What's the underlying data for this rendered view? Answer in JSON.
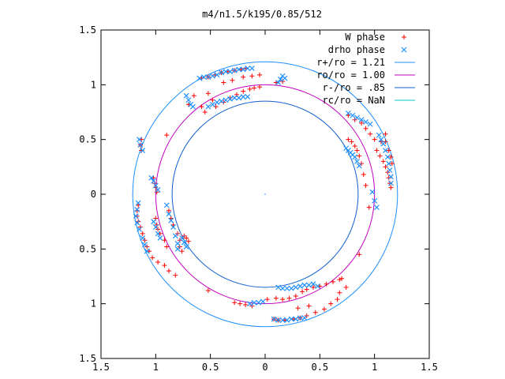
{
  "chart_data": {
    "type": "scatter",
    "title": "m4/n1.5/k195/0.85/512",
    "xlim": [
      -1.5,
      1.5
    ],
    "ylim": [
      -1.5,
      1.5
    ],
    "x_ticks": [
      -1.5,
      -1,
      -0.5,
      0,
      0.5,
      1,
      1.5
    ],
    "y_ticks": [
      -1.5,
      -1,
      -0.5,
      0,
      0.5,
      1,
      1.5
    ],
    "x_tick_labels": [
      "1.5",
      "1",
      "0.5",
      "0",
      "0.5",
      "1",
      "1.5"
    ],
    "y_tick_labels": [
      "1.5",
      "1",
      "0.5",
      "0",
      "0.5",
      "1",
      "1.5"
    ],
    "grid": false,
    "legend_position": "top-right",
    "legend": [
      {
        "label": "W phase",
        "kind": "plus",
        "color": "#ff0000"
      },
      {
        "label": "drho phase",
        "kind": "cross",
        "color": "#1e90ff"
      },
      {
        "label": "r+/ro = 1.21",
        "kind": "line",
        "color": "#1e90ff"
      },
      {
        "label": "ro/ro = 1.00",
        "kind": "line",
        "color": "#c000c0"
      },
      {
        "label": "r-/ro = .85",
        "kind": "line",
        "color": "#1060d0"
      },
      {
        "label": "rc/ro = NaN",
        "kind": "line",
        "color": "#00c8c8"
      }
    ],
    "circles": [
      {
        "name": "r+/ro",
        "r": 1.21,
        "color": "#1e90ff"
      },
      {
        "name": "ro/ro",
        "r": 1.0,
        "color": "#c000c0"
      },
      {
        "name": "r-/ro",
        "r": 0.85,
        "color": "#1060d0"
      }
    ],
    "series": [
      {
        "name": "W phase",
        "color": "#ff0000",
        "points": [
          [
            -0.58,
            1.06
          ],
          [
            -0.52,
            1.07
          ],
          [
            -0.46,
            1.09
          ],
          [
            -0.4,
            1.11
          ],
          [
            -0.34,
            1.12
          ],
          [
            -0.28,
            1.13
          ],
          [
            -0.22,
            1.14
          ],
          [
            -0.18,
            1.15
          ],
          [
            -0.52,
            0.92
          ],
          [
            -0.48,
            0.86
          ],
          [
            -0.45,
            0.8
          ],
          [
            -0.38,
            0.84
          ],
          [
            -0.32,
            0.88
          ],
          [
            -0.26,
            0.91
          ],
          [
            -0.2,
            0.94
          ],
          [
            -0.14,
            0.96
          ],
          [
            -0.1,
            0.97
          ],
          [
            -0.05,
            0.98
          ],
          [
            -0.38,
            1.02
          ],
          [
            -0.3,
            1.04
          ],
          [
            -0.2,
            1.07
          ],
          [
            -0.12,
            1.08
          ],
          [
            -0.05,
            1.09
          ],
          [
            0.1,
            1.02
          ],
          [
            0.16,
            1.03
          ],
          [
            -0.65,
            0.9
          ],
          [
            -0.7,
            0.82
          ],
          [
            -0.55,
            0.75
          ],
          [
            -0.58,
            0.8
          ],
          [
            -0.9,
            0.54
          ],
          [
            -1.13,
            0.5
          ],
          [
            -1.14,
            0.45
          ],
          [
            -1.13,
            0.4
          ],
          [
            -1.02,
            0.15
          ],
          [
            -1.01,
            0.1
          ],
          [
            -1.0,
            0.06
          ],
          [
            -0.99,
            0.02
          ],
          [
            -1.16,
            -0.1
          ],
          [
            -1.17,
            -0.15
          ],
          [
            -1.17,
            -0.2
          ],
          [
            -1.16,
            -0.25
          ],
          [
            -1.14,
            -0.3
          ],
          [
            -1.12,
            -0.36
          ],
          [
            -1.1,
            -0.42
          ],
          [
            -1.08,
            -0.48
          ],
          [
            -1.06,
            -0.52
          ],
          [
            -1.03,
            -0.58
          ],
          [
            -0.98,
            -0.62
          ],
          [
            -0.92,
            -0.65
          ],
          [
            -0.88,
            -0.7
          ],
          [
            -0.82,
            -0.74
          ],
          [
            -1.0,
            -0.22
          ],
          [
            -0.99,
            -0.28
          ],
          [
            -0.98,
            -0.32
          ],
          [
            -0.96,
            -0.36
          ],
          [
            -0.92,
            -0.42
          ],
          [
            -0.9,
            -0.48
          ],
          [
            -0.88,
            -0.15
          ],
          [
            -0.86,
            -0.22
          ],
          [
            -0.84,
            -0.28
          ],
          [
            -0.8,
            -0.36
          ],
          [
            -0.78,
            -0.42
          ],
          [
            -0.78,
            -0.48
          ],
          [
            -0.76,
            -0.52
          ],
          [
            -0.74,
            -0.38
          ],
          [
            -0.72,
            -0.4
          ],
          [
            -0.7,
            -0.43
          ],
          [
            -0.52,
            -0.88
          ],
          [
            -0.28,
            -0.99
          ],
          [
            -0.23,
            -1.0
          ],
          [
            -0.18,
            -1.01
          ],
          [
            -0.12,
            -1.02
          ],
          [
            0.02,
            -0.96
          ],
          [
            0.1,
            -0.95
          ],
          [
            0.16,
            -0.96
          ],
          [
            0.22,
            -0.95
          ],
          [
            0.28,
            -0.93
          ],
          [
            0.34,
            -0.89
          ],
          [
            0.38,
            -0.87
          ],
          [
            0.44,
            -0.85
          ],
          [
            0.5,
            -0.84
          ],
          [
            0.56,
            -0.82
          ],
          [
            0.62,
            -0.8
          ],
          [
            0.68,
            -0.78
          ],
          [
            0.7,
            -0.77
          ],
          [
            0.08,
            -1.14
          ],
          [
            0.12,
            -1.15
          ],
          [
            0.18,
            -1.15
          ],
          [
            0.26,
            -1.14
          ],
          [
            0.32,
            -1.13
          ],
          [
            0.38,
            -1.11
          ],
          [
            0.46,
            -1.08
          ],
          [
            0.54,
            -1.05
          ],
          [
            0.6,
            -1.0
          ],
          [
            0.66,
            -0.96
          ],
          [
            0.68,
            -0.9
          ],
          [
            0.86,
            -0.55
          ],
          [
            0.74,
            -0.85
          ],
          [
            0.4,
            -1.02
          ],
          [
            0.3,
            -1.04
          ],
          [
            0.76,
            0.72
          ],
          [
            0.82,
            0.68
          ],
          [
            0.88,
            0.65
          ],
          [
            0.92,
            0.6
          ],
          [
            0.96,
            0.55
          ],
          [
            1.0,
            0.5
          ],
          [
            1.06,
            0.48
          ],
          [
            1.1,
            0.55
          ],
          [
            0.76,
            0.5
          ],
          [
            0.79,
            0.48
          ],
          [
            0.82,
            0.44
          ],
          [
            0.84,
            0.4
          ],
          [
            0.86,
            0.35
          ],
          [
            0.88,
            0.28
          ],
          [
            0.9,
            0.18
          ],
          [
            0.92,
            0.08
          ],
          [
            0.95,
            -0.12
          ],
          [
            1.02,
            0.4
          ],
          [
            1.05,
            0.35
          ],
          [
            1.08,
            0.3
          ],
          [
            1.1,
            0.25
          ],
          [
            1.12,
            0.2
          ],
          [
            1.13,
            0.15
          ],
          [
            1.14,
            0.1
          ],
          [
            1.15,
            0.06
          ],
          [
            1.1,
            0.48
          ],
          [
            1.13,
            0.4
          ],
          [
            1.15,
            0.34
          ],
          [
            1.16,
            0.28
          ]
        ]
      },
      {
        "name": "drho phase",
        "color": "#1e90ff",
        "points": [
          [
            -0.6,
            1.06
          ],
          [
            -0.56,
            1.07
          ],
          [
            -0.52,
            1.07
          ],
          [
            -0.48,
            1.08
          ],
          [
            -0.44,
            1.09
          ],
          [
            -0.4,
            1.11
          ],
          [
            -0.36,
            1.12
          ],
          [
            -0.32,
            1.12
          ],
          [
            -0.28,
            1.13
          ],
          [
            -0.24,
            1.14
          ],
          [
            -0.2,
            1.14
          ],
          [
            -0.16,
            1.15
          ],
          [
            -0.12,
            1.15
          ],
          [
            -0.72,
            0.9
          ],
          [
            -0.7,
            0.86
          ],
          [
            -0.68,
            0.82
          ],
          [
            -0.66,
            0.8
          ],
          [
            -0.52,
            0.8
          ],
          [
            -0.48,
            0.82
          ],
          [
            -0.44,
            0.84
          ],
          [
            -0.4,
            0.85
          ],
          [
            -0.36,
            0.86
          ],
          [
            -0.32,
            0.87
          ],
          [
            -0.28,
            0.88
          ],
          [
            -0.24,
            0.88
          ],
          [
            -0.2,
            0.89
          ],
          [
            -0.16,
            0.89
          ],
          [
            0.12,
            1.02
          ],
          [
            0.14,
            1.05
          ],
          [
            0.16,
            1.08
          ],
          [
            0.18,
            1.06
          ],
          [
            -1.15,
            0.5
          ],
          [
            -1.14,
            0.45
          ],
          [
            -1.12,
            0.4
          ],
          [
            -1.04,
            0.15
          ],
          [
            -1.02,
            0.12
          ],
          [
            -1.0,
            0.08
          ],
          [
            -0.98,
            0.04
          ],
          [
            -1.16,
            -0.08
          ],
          [
            -1.17,
            -0.14
          ],
          [
            -1.18,
            -0.2
          ],
          [
            -1.17,
            -0.26
          ],
          [
            -1.15,
            -0.32
          ],
          [
            -1.12,
            -0.4
          ],
          [
            -1.1,
            -0.46
          ],
          [
            -1.08,
            -0.52
          ],
          [
            -1.02,
            -0.25
          ],
          [
            -1.0,
            -0.3
          ],
          [
            -0.98,
            -0.36
          ],
          [
            -0.96,
            -0.4
          ],
          [
            -0.9,
            -0.1
          ],
          [
            -0.88,
            -0.18
          ],
          [
            -0.86,
            -0.24
          ],
          [
            -0.84,
            -0.3
          ],
          [
            -0.82,
            -0.38
          ],
          [
            -0.8,
            -0.45
          ],
          [
            -0.8,
            -0.5
          ],
          [
            -0.76,
            -0.4
          ],
          [
            -0.74,
            -0.44
          ],
          [
            -0.72,
            -0.48
          ],
          [
            0.12,
            -0.85
          ],
          [
            0.16,
            -0.86
          ],
          [
            0.2,
            -0.86
          ],
          [
            0.24,
            -0.86
          ],
          [
            0.28,
            -0.85
          ],
          [
            0.32,
            -0.84
          ],
          [
            0.36,
            -0.83
          ],
          [
            0.4,
            -0.83
          ],
          [
            0.44,
            -0.82
          ],
          [
            0.48,
            -0.84
          ],
          [
            -0.14,
            -1.0
          ],
          [
            -0.1,
            -0.99
          ],
          [
            -0.06,
            -0.99
          ],
          [
            -0.02,
            -0.98
          ],
          [
            0.08,
            -1.14
          ],
          [
            0.12,
            -1.15
          ],
          [
            0.16,
            -1.15
          ],
          [
            0.2,
            -1.15
          ],
          [
            0.24,
            -1.14
          ],
          [
            0.28,
            -1.14
          ],
          [
            0.32,
            -1.13
          ],
          [
            0.36,
            -1.13
          ],
          [
            0.76,
            0.74
          ],
          [
            0.8,
            0.72
          ],
          [
            0.84,
            0.7
          ],
          [
            0.88,
            0.68
          ],
          [
            0.92,
            0.66
          ],
          [
            0.96,
            0.64
          ],
          [
            0.74,
            0.42
          ],
          [
            0.76,
            0.4
          ],
          [
            0.78,
            0.38
          ],
          [
            0.8,
            0.36
          ],
          [
            0.82,
            0.34
          ],
          [
            0.84,
            0.3
          ],
          [
            0.86,
            0.26
          ],
          [
            1.04,
            0.54
          ],
          [
            1.06,
            0.5
          ],
          [
            1.08,
            0.46
          ],
          [
            1.1,
            0.4
          ],
          [
            1.12,
            0.34
          ],
          [
            1.13,
            0.28
          ],
          [
            1.14,
            0.22
          ],
          [
            1.15,
            0.16
          ],
          [
            1.15,
            0.1
          ],
          [
            0.98,
            0.02
          ],
          [
            1.0,
            -0.06
          ],
          [
            1.02,
            -0.12
          ]
        ]
      }
    ],
    "center_marker": [
      0,
      0
    ]
  }
}
